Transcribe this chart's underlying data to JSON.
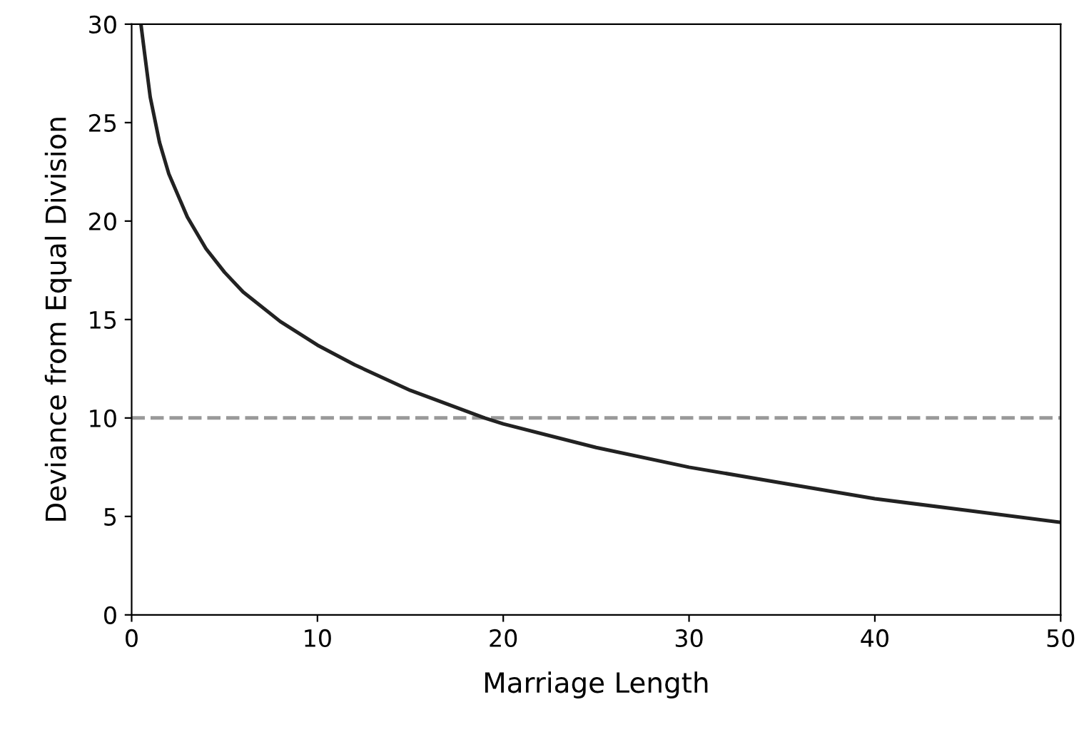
{
  "chart_data": {
    "type": "line",
    "xlabel": "Marriage Length",
    "ylabel": "Deviance from Equal Division",
    "x": [
      0.5,
      0.7,
      1,
      1.5,
      2,
      3,
      4,
      5,
      6,
      8,
      10,
      12,
      15,
      19,
      20,
      25,
      30,
      35,
      40,
      45,
      50
    ],
    "series": [
      {
        "color": "#222222",
        "values": [
          30,
          28.5,
          26.3,
          24,
          22.4,
          20.2,
          18.6,
          17.4,
          16.4,
          14.9,
          13.7,
          12.7,
          11.4,
          10,
          9.7,
          8.5,
          7.5,
          6.7,
          5.9,
          5.3,
          4.7
        ]
      }
    ],
    "xlim": [
      0,
      50
    ],
    "ylim": [
      0,
      30
    ],
    "xticks": [
      0,
      10,
      20,
      30,
      40,
      50
    ],
    "yticks": [
      0,
      5,
      10,
      15,
      20,
      25,
      30
    ],
    "ref_lines": [
      {
        "axis": "y",
        "value": 10,
        "color": "#999999",
        "line_style": "dashed"
      }
    ],
    "grid": false,
    "legend": false,
    "marker": "none",
    "line_style": "solid"
  }
}
